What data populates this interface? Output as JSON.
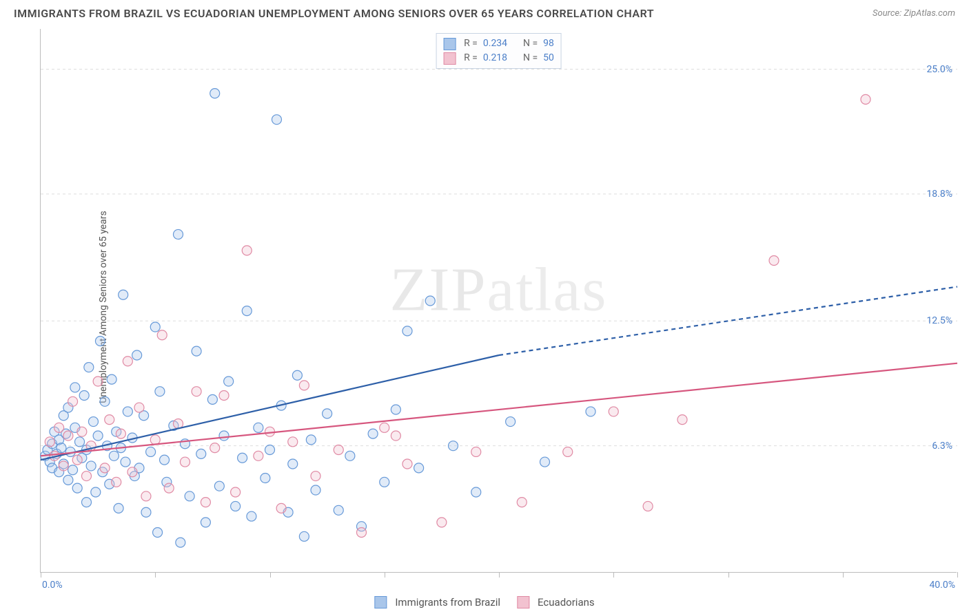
{
  "header": {
    "title": "IMMIGRANTS FROM BRAZIL VS ECUADORIAN UNEMPLOYMENT AMONG SENIORS OVER 65 YEARS CORRELATION CHART",
    "source_label": "Source:",
    "source_value": "ZipAtlas.com"
  },
  "watermark": {
    "bold": "ZIP",
    "light": "atlas"
  },
  "chart": {
    "type": "scatter",
    "ylabel": "Unemployment Among Seniors over 65 years",
    "xlim": [
      0,
      40
    ],
    "ylim": [
      0,
      27
    ],
    "x_tick_positions": [
      0,
      5,
      10,
      15,
      20,
      25,
      30,
      35,
      40
    ],
    "x_axis_labels": [
      {
        "value": 0,
        "text": "0.0%"
      },
      {
        "value": 40,
        "text": "40.0%"
      }
    ],
    "y_gridlines": [
      6.3,
      12.5,
      18.8,
      25.0
    ],
    "y_axis_labels": [
      {
        "value": 6.3,
        "text": "6.3%"
      },
      {
        "value": 12.5,
        "text": "12.5%"
      },
      {
        "value": 18.8,
        "text": "18.8%"
      },
      {
        "value": 25.0,
        "text": "25.0%"
      }
    ],
    "background_color": "#ffffff",
    "grid_color": "#dddddd",
    "axis_color": "#bbbbbb",
    "marker_radius": 7,
    "marker_stroke_width": 1.2,
    "marker_fill_opacity": 0.35,
    "series": [
      {
        "id": "brazil",
        "label": "Immigrants from Brazil",
        "color_stroke": "#6699d8",
        "color_fill": "#a9c6ea",
        "trend": {
          "start": [
            0,
            5.6
          ],
          "solid_end": [
            20,
            10.8
          ],
          "dashed_end": [
            40,
            14.2
          ],
          "color": "#2d5fa8",
          "width": 2.2,
          "dash": "6 5"
        },
        "R": "0.234",
        "N": "98",
        "points": [
          [
            0.2,
            5.8
          ],
          [
            0.3,
            6.1
          ],
          [
            0.4,
            5.5
          ],
          [
            0.5,
            6.4
          ],
          [
            0.5,
            5.2
          ],
          [
            0.6,
            7.0
          ],
          [
            0.7,
            5.9
          ],
          [
            0.8,
            6.6
          ],
          [
            0.8,
            5.0
          ],
          [
            0.9,
            6.2
          ],
          [
            1.0,
            7.8
          ],
          [
            1.0,
            5.4
          ],
          [
            1.1,
            6.9
          ],
          [
            1.2,
            4.6
          ],
          [
            1.2,
            8.2
          ],
          [
            1.3,
            6.0
          ],
          [
            1.4,
            5.1
          ],
          [
            1.5,
            7.2
          ],
          [
            1.5,
            9.2
          ],
          [
            1.6,
            4.2
          ],
          [
            1.7,
            6.5
          ],
          [
            1.8,
            5.7
          ],
          [
            1.9,
            8.8
          ],
          [
            2.0,
            6.1
          ],
          [
            2.0,
            3.5
          ],
          [
            2.1,
            10.2
          ],
          [
            2.2,
            5.3
          ],
          [
            2.3,
            7.5
          ],
          [
            2.4,
            4.0
          ],
          [
            2.5,
            6.8
          ],
          [
            2.6,
            11.5
          ],
          [
            2.7,
            5.0
          ],
          [
            2.8,
            8.5
          ],
          [
            2.9,
            6.3
          ],
          [
            3.0,
            4.4
          ],
          [
            3.1,
            9.6
          ],
          [
            3.2,
            5.8
          ],
          [
            3.3,
            7.0
          ],
          [
            3.4,
            3.2
          ],
          [
            3.5,
            6.2
          ],
          [
            3.6,
            13.8
          ],
          [
            3.7,
            5.5
          ],
          [
            3.8,
            8.0
          ],
          [
            4.0,
            6.7
          ],
          [
            4.1,
            4.8
          ],
          [
            4.2,
            10.8
          ],
          [
            4.3,
            5.2
          ],
          [
            4.5,
            7.8
          ],
          [
            4.6,
            3.0
          ],
          [
            4.8,
            6.0
          ],
          [
            5.0,
            12.2
          ],
          [
            5.1,
            2.0
          ],
          [
            5.2,
            9.0
          ],
          [
            5.4,
            5.6
          ],
          [
            5.5,
            4.5
          ],
          [
            5.8,
            7.3
          ],
          [
            6.0,
            16.8
          ],
          [
            6.1,
            1.5
          ],
          [
            6.3,
            6.4
          ],
          [
            6.5,
            3.8
          ],
          [
            6.8,
            11.0
          ],
          [
            7.0,
            5.9
          ],
          [
            7.2,
            2.5
          ],
          [
            7.5,
            8.6
          ],
          [
            7.6,
            23.8
          ],
          [
            7.8,
            4.3
          ],
          [
            8.0,
            6.8
          ],
          [
            8.2,
            9.5
          ],
          [
            8.5,
            3.3
          ],
          [
            8.8,
            5.7
          ],
          [
            9.0,
            13.0
          ],
          [
            9.2,
            2.8
          ],
          [
            9.5,
            7.2
          ],
          [
            9.8,
            4.7
          ],
          [
            10.0,
            6.1
          ],
          [
            10.3,
            22.5
          ],
          [
            10.5,
            8.3
          ],
          [
            10.8,
            3.0
          ],
          [
            11.0,
            5.4
          ],
          [
            11.2,
            9.8
          ],
          [
            11.5,
            1.8
          ],
          [
            11.8,
            6.6
          ],
          [
            12.0,
            4.1
          ],
          [
            12.5,
            7.9
          ],
          [
            13.0,
            3.1
          ],
          [
            13.5,
            5.8
          ],
          [
            14.0,
            2.3
          ],
          [
            14.5,
            6.9
          ],
          [
            15.0,
            4.5
          ],
          [
            15.5,
            8.1
          ],
          [
            16.0,
            12.0
          ],
          [
            16.5,
            5.2
          ],
          [
            17.0,
            13.5
          ],
          [
            18.0,
            6.3
          ],
          [
            19.0,
            4.0
          ],
          [
            20.5,
            7.5
          ],
          [
            22.0,
            5.5
          ],
          [
            24.0,
            8.0
          ]
        ]
      },
      {
        "id": "ecuadorian",
        "label": "Ecuadorians",
        "color_stroke": "#e08aa4",
        "color_fill": "#f2c2d0",
        "trend": {
          "start": [
            0,
            5.8
          ],
          "solid_end": [
            40,
            10.4
          ],
          "dashed_end": null,
          "color": "#d6567e",
          "width": 2.2,
          "dash": null
        },
        "R": "0.218",
        "N": "50",
        "points": [
          [
            0.4,
            6.5
          ],
          [
            0.6,
            5.8
          ],
          [
            0.8,
            7.2
          ],
          [
            1.0,
            5.3
          ],
          [
            1.2,
            6.8
          ],
          [
            1.4,
            8.5
          ],
          [
            1.6,
            5.6
          ],
          [
            1.8,
            7.0
          ],
          [
            2.0,
            4.8
          ],
          [
            2.2,
            6.3
          ],
          [
            2.5,
            9.5
          ],
          [
            2.8,
            5.2
          ],
          [
            3.0,
            7.6
          ],
          [
            3.3,
            4.5
          ],
          [
            3.5,
            6.9
          ],
          [
            3.8,
            10.5
          ],
          [
            4.0,
            5.0
          ],
          [
            4.3,
            8.2
          ],
          [
            4.6,
            3.8
          ],
          [
            5.0,
            6.6
          ],
          [
            5.3,
            11.8
          ],
          [
            5.6,
            4.2
          ],
          [
            6.0,
            7.4
          ],
          [
            6.3,
            5.5
          ],
          [
            6.8,
            9.0
          ],
          [
            7.2,
            3.5
          ],
          [
            7.6,
            6.2
          ],
          [
            8.0,
            8.8
          ],
          [
            8.5,
            4.0
          ],
          [
            9.0,
            16.0
          ],
          [
            9.5,
            5.8
          ],
          [
            10.0,
            7.0
          ],
          [
            10.5,
            3.2
          ],
          [
            11.0,
            6.5
          ],
          [
            11.5,
            9.3
          ],
          [
            12.0,
            4.8
          ],
          [
            13.0,
            6.1
          ],
          [
            14.0,
            2.0
          ],
          [
            15.0,
            7.2
          ],
          [
            15.5,
            6.8
          ],
          [
            16.0,
            5.4
          ],
          [
            17.5,
            2.5
          ],
          [
            19.0,
            6.0
          ],
          [
            21.0,
            3.5
          ],
          [
            23.0,
            6.0
          ],
          [
            25.0,
            8.0
          ],
          [
            26.5,
            3.3
          ],
          [
            28.0,
            7.6
          ],
          [
            32.0,
            15.5
          ],
          [
            36.0,
            23.5
          ]
        ]
      }
    ],
    "legend_top": {
      "R_label": "R =",
      "N_label": "N ="
    },
    "legend_bottom_labels": [
      "Immigrants from Brazil",
      "Ecuadorians"
    ]
  }
}
